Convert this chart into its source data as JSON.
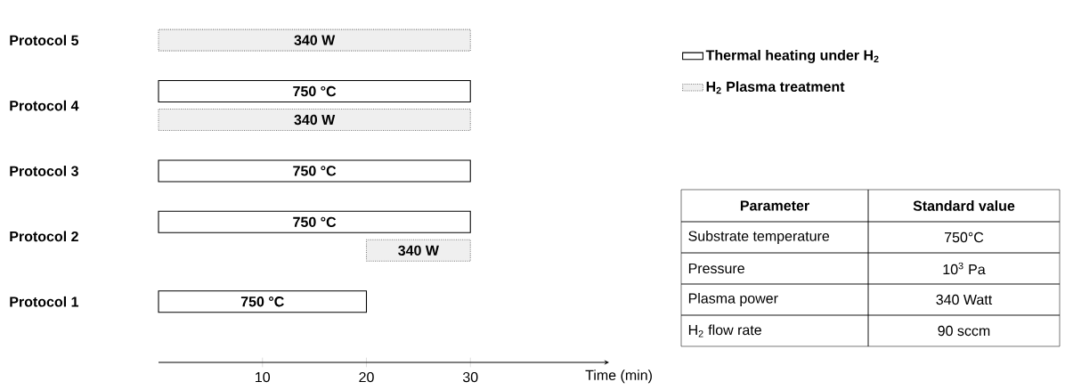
{
  "chart_data": [
    {
      "type": "bar",
      "orientation": "horizontal",
      "xlabel": "Time (min)",
      "xlim": [
        0,
        43
      ],
      "xticks": [
        10,
        20,
        30
      ],
      "legend": "right",
      "categories": [
        "Protocol 5",
        "Protocol 4",
        "Protocol 3",
        "Protocol 2",
        "Protocol 1"
      ],
      "series": [
        {
          "name": "Thermal heating under H$_{2}$",
          "color": "#ffffff",
          "line_style": "solid",
          "values": [
            null,
            30,
            30,
            30,
            20
          ],
          "base": [
            null,
            0,
            0,
            0,
            0
          ]
        },
        {
          "name": "H$_{2}$ Plasma treatment",
          "color": "#efefef",
          "line_style": "dotted",
          "values": [
            30,
            30,
            null,
            10,
            null
          ],
          "base": [
            0,
            0,
            null,
            20,
            null
          ]
        }
      ],
      "annotations": [
        "750 °C",
        "750 °C",
        "750 °C",
        "750 °C",
        "340 W",
        "340 W",
        "340 W"
      ]
    },
    {
      "type": "other",
      "annotations": [
        "Parameter",
        "Standard value",
        "Substrate  temperature",
        "750°C",
        "Pressure",
        "10$^{3}$ Pa",
        "Plasma power",
        "340 Watt",
        "H$_{2}$ flow rate",
        "90 sccm"
      ]
    }
  ]
}
